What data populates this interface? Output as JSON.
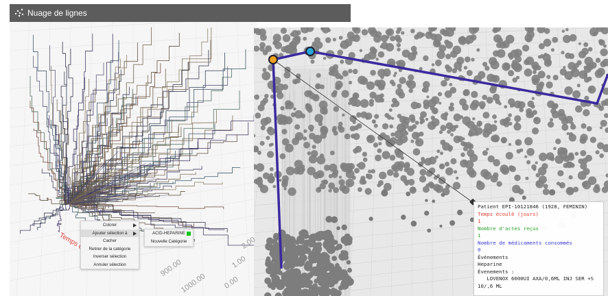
{
  "window": {
    "title": "Nuage de lignes"
  },
  "context_menu": {
    "items": [
      {
        "label": "Colorer",
        "has_submenu": true
      },
      {
        "label": "Ajouter sélection à",
        "has_submenu": true
      },
      {
        "label": "Cacher",
        "has_submenu": false
      },
      {
        "label": "Retirer de la catégorie",
        "has_submenu": false
      },
      {
        "label": "Inverser sélection",
        "has_submenu": false
      },
      {
        "label": "Annuler sélection",
        "has_submenu": false
      }
    ]
  },
  "submenu": {
    "items": [
      {
        "label": "ACID-HEPARINE",
        "swatch": "#16c51c"
      },
      {
        "label": "Nouvelle Catégorie"
      }
    ]
  },
  "axis": {
    "tick_900": "900.00",
    "tick_1000": "1000.00",
    "tick_000": "0.00",
    "tick_100": "1.00",
    "tick_200": "2.00",
    "side_label": "Temps é"
  },
  "tooltip": {
    "patient": "Patient EPI-10121846 (1928, FEMININ)",
    "time_label": "Temps écoulé (jours)",
    "time_value": "1",
    "acts_label": "Nombre d'actes reçus",
    "acts_value": "1",
    "meds_label": "Nombre de médicaments consommés",
    "meds_value": "0",
    "events_heading": "Événements",
    "event": "Heparine",
    "events_list_heading": "Évenements :",
    "event_detail": "   LOVENOX 6000UI AXA/0,6ML INJ SER +S 10/,6 ML"
  },
  "colors": {
    "highlight_path": "#3a2a9e",
    "node_orange": "#f0a020",
    "node_blue": "#2aa6d8",
    "selection_swatch": "#16c51c"
  }
}
